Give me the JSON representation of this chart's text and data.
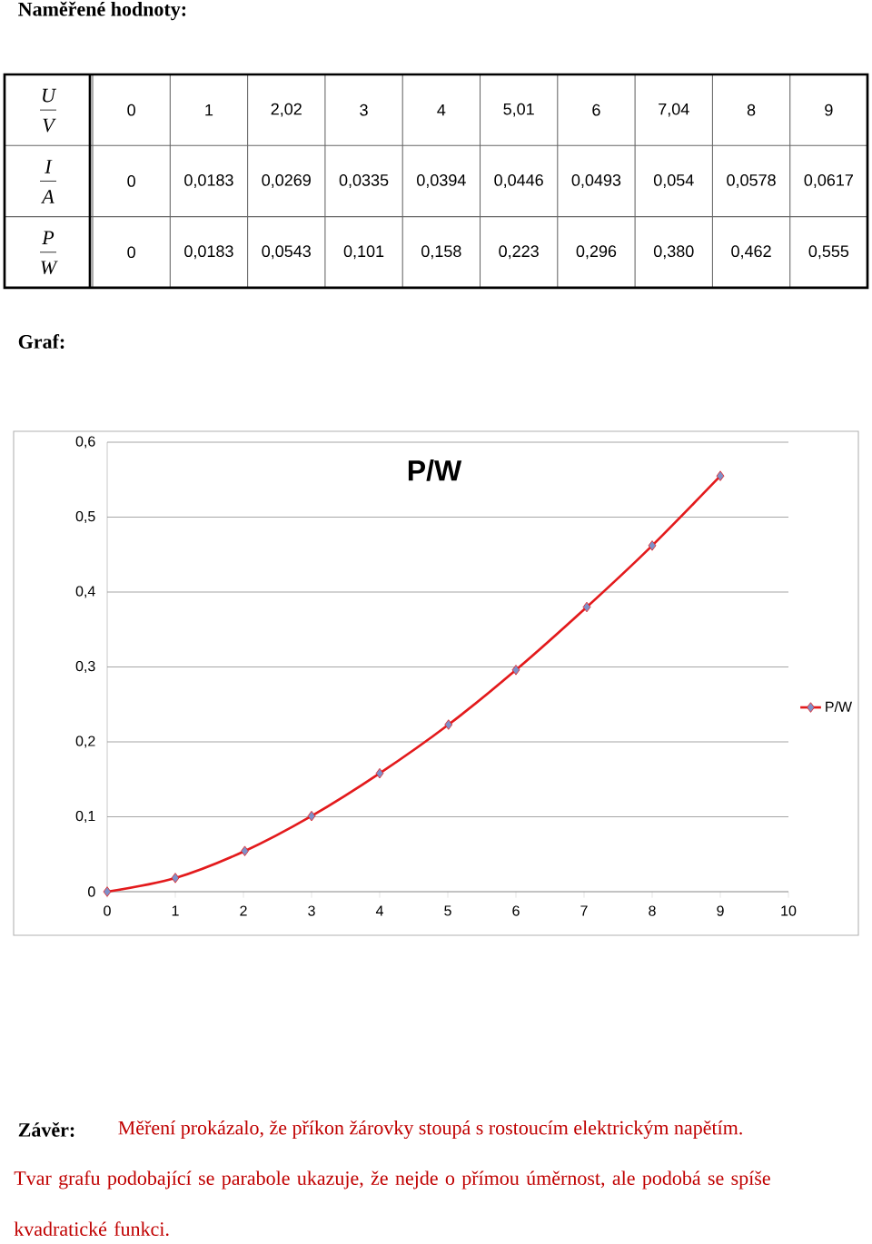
{
  "chart_data": [
    {
      "type": "other",
      "title": "Naměřené hodnoty:",
      "annotations": [
        "U",
        "V",
        "0",
        "1",
        "2,02",
        "3",
        "4",
        "5,01",
        "6",
        "7,04",
        "8",
        "9",
        "I",
        "A",
        "0",
        "0,0183",
        "0,0269",
        "0,0335",
        "0,0394",
        "0,0446",
        "0,0493",
        "0,054",
        "0,0578",
        "0,0617",
        "P",
        "W",
        "0",
        "0,0183",
        "0,0543",
        "0,101",
        "0,158",
        "0,223",
        "0,296",
        "0,380",
        "0,462",
        "0,555"
      ]
    },
    {
      "type": "line",
      "title": "P/W",
      "x": [
        0,
        1,
        2.02,
        3,
        4,
        5.01,
        6,
        7.04,
        8,
        9
      ],
      "series": [
        {
          "name": "P/W",
          "color": "#e31a1c",
          "values": [
            0,
            0.0183,
            0.0543,
            0.101,
            0.158,
            0.223,
            0.296,
            0.38,
            0.462,
            0.555
          ]
        }
      ],
      "xlim": [
        0,
        10
      ],
      "xticks": [
        0,
        1,
        2,
        3,
        4,
        5,
        6,
        7,
        8,
        9,
        10
      ],
      "ylim": [
        0,
        0.6
      ],
      "yticks": [
        0,
        {
          "value": 0.1,
          "label": "0,1"
        },
        {
          "value": 0.2,
          "label": "0,2"
        },
        {
          "value": 0.3,
          "label": "0,3"
        },
        {
          "value": 0.4,
          "label": "0,4"
        },
        {
          "value": 0.5,
          "label": "0,5"
        },
        {
          "value": 0.6,
          "label": "0,6"
        }
      ],
      "grid": "y",
      "legend": "right",
      "marker": "diamond",
      "line_style": "solid",
      "annotations": [
        "Graf:",
        "Závěr:",
        "Měření prokázalo, že příkon žárovky stoupá s rostoucím elektrickým napětím.",
        "Tvar grafu podobající se parabole ukazuje, že nejde o přímou úměrnost, ale podobá se spíše kvadratické funkci."
      ]
    }
  ]
}
